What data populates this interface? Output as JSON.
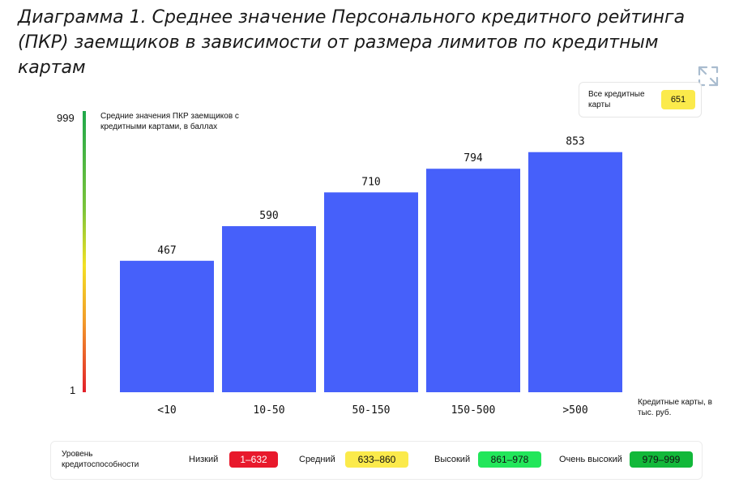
{
  "title": "Диаграмма 1. Среднее значение Персонального кредитного рейтинга (ПКР) заемщиков в зависимости от размера лимитов по кредитным картам",
  "all_cards": {
    "label": "Все кредитные карты",
    "value": "651",
    "color": "#fbea4b"
  },
  "scale": {
    "top": "999",
    "bottom": "1"
  },
  "chart_data": {
    "type": "bar",
    "categories": [
      "<10",
      "10-50",
      "50-150",
      "150-500",
      ">500"
    ],
    "values": [
      467,
      590,
      710,
      794,
      853
    ],
    "ylabel": "Средние значения ПКР заемщиков с кредитными картами, в баллах",
    "xlabel": "Кредитные карты, в тыс. руб.",
    "ylim": [
      0,
      999
    ],
    "bar_color": "#4660fa",
    "grid": false
  },
  "legend": {
    "heading": "Уровень кредитоспособности",
    "items": [
      {
        "label": "Низкий",
        "range": "1–632",
        "color": "#e8192c",
        "text_color": "#ffffff"
      },
      {
        "label": "Средний",
        "range": "633–860",
        "color": "#fbea4b",
        "text_color": "#111111"
      },
      {
        "label": "Высокий",
        "range": "861–978",
        "color": "#22e65a",
        "text_color": "#111111"
      },
      {
        "label": "Очень высокий",
        "range": "979–999",
        "color": "#12b83a",
        "text_color": "#111111"
      }
    ]
  }
}
